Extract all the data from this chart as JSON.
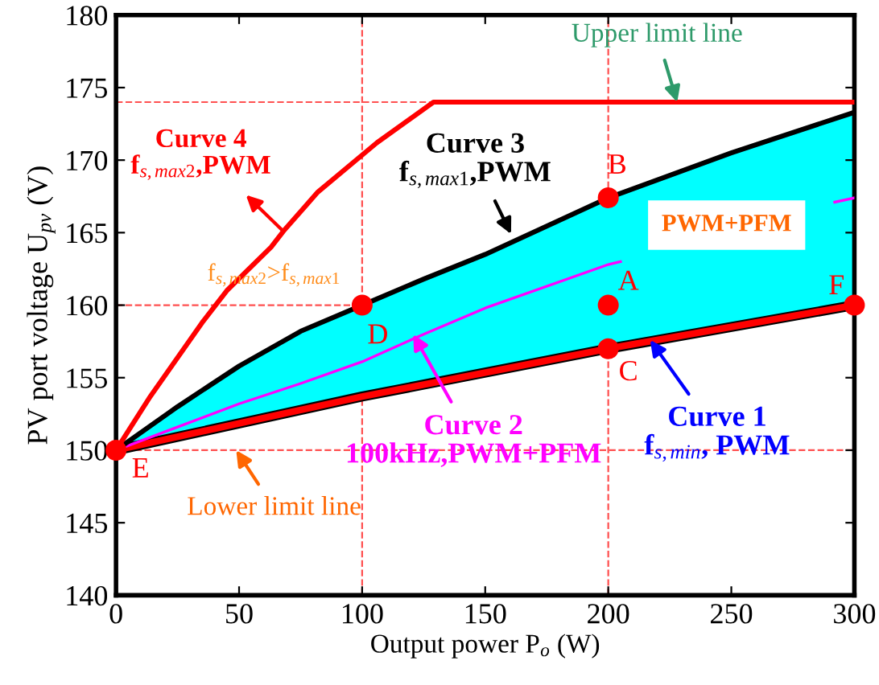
{
  "chart_data": {
    "type": "line",
    "xlabel": "Output power P$_{o}$ (W)",
    "ylabel": "PV port voltage U$_{pv}$ (V)",
    "xlim": [
      0,
      300
    ],
    "ylim": [
      140,
      180
    ],
    "xticks": [
      0,
      50,
      100,
      150,
      200,
      250,
      300
    ],
    "yticks": [
      140,
      145,
      150,
      155,
      160,
      165,
      170,
      175,
      180
    ],
    "grid": false,
    "legend": false,
    "line_style": "solid",
    "marker": "none",
    "series": [
      {
        "color": "#ff0000",
        "x": [
          0,
          100,
          200,
          300
        ],
        "values": [
          150,
          153.7,
          157,
          160
        ]
      },
      {
        "color": "#ff00ff",
        "x": [
          0,
          25,
          50,
          75,
          100,
          125,
          150,
          200,
          205,
          250,
          292,
          300
        ],
        "values": [
          150,
          151.6,
          153.2,
          154.6,
          156.1,
          158,
          159.8,
          162.8,
          163,
          null,
          167.1,
          167.4
        ],
        "lower": [
          150,
          150.9,
          151.9,
          152.8,
          153.7,
          154.5,
          155.4,
          157,
          157.1,
          158.5,
          159.7,
          160
        ],
        "upper": [
          150,
          153,
          155.8,
          158.2,
          160,
          161.8,
          163.5,
          167.4,
          167.7,
          170.5,
          172.8,
          173.3
        ]
      },
      {
        "color": "#000000",
        "x": [
          0,
          25,
          50,
          75,
          100,
          125,
          150,
          200,
          250,
          300
        ],
        "values": [
          150,
          153,
          155.8,
          158.2,
          160,
          161.8,
          163.5,
          167.4,
          170.5,
          173.3
        ]
      },
      {
        "color": "#ff0000",
        "x": [
          0,
          13.5,
          35,
          45,
          63,
          68,
          82,
          106,
          129,
          300
        ],
        "values": [
          150,
          153.6,
          158.8,
          161,
          164,
          165.1,
          167.8,
          171.2,
          174,
          174
        ]
      },
      {
        "type": "scatter",
        "marker": "circle",
        "color": "#ff0000",
        "x": [
          0,
          100,
          200,
          200,
          200,
          300
        ],
        "values": [
          150,
          160,
          160,
          167.4,
          157,
          160
        ]
      }
    ],
    "ref_lines": [
      {
        "axis": "y",
        "value": 174,
        "color": "#ff5050",
        "line_style": "dashed"
      },
      {
        "axis": "y",
        "value": 160,
        "color": "#ff5050",
        "line_style": "dashed"
      },
      {
        "axis": "y",
        "value": 150,
        "color": "#ff5050",
        "line_style": "dashed"
      },
      {
        "axis": "x",
        "value": 100,
        "color": "#ff5050",
        "line_style": "dashed"
      },
      {
        "axis": "x",
        "value": 200,
        "color": "#ff5050",
        "line_style": "dashed"
      }
    ],
    "annotations": [
      {
        "text": "Upper limit line",
        "x": 228,
        "y": 174
      },
      "Curve 4\nf$_{s,max2}$,PWM",
      {
        "text": "Curve 3\nf$_{s,max1}$,PWM",
        "x": 160.5,
        "y": 164.9
      },
      "PWM+PFM",
      "f$_{s,max2}$>f$_{s,max1}$",
      {
        "text": "Curve 2\n100kHz,PWM+PFM",
        "x": 120.7,
        "y": 158.0
      },
      {
        "text": "Curve 1\nf$_{s,min}$, PWM",
        "x": 217,
        "y": 157.6
      },
      {
        "text": "Lower limit line",
        "x": 48.8,
        "y": 150
      },
      {
        "text": "A",
        "x": 200,
        "y": 160
      },
      {
        "text": "B",
        "x": 200,
        "y": 167.4
      },
      {
        "text": "C",
        "x": 200,
        "y": 157
      },
      {
        "text": "D",
        "x": 100,
        "y": 160
      },
      {
        "text": "E",
        "x": 0,
        "y": 150
      },
      {
        "text": "F",
        "x": 300,
        "y": 160
      }
    ]
  }
}
